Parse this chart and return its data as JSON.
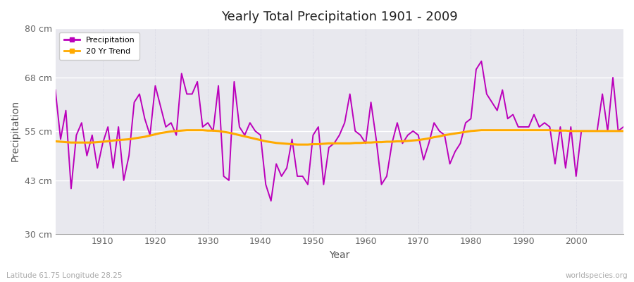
{
  "title": "Yearly Total Precipitation 1901 - 2009",
  "xlabel": "Year",
  "ylabel": "Precipitation",
  "lat_lon_label": "Latitude 61.75 Longitude 28.25",
  "watermark": "worldspecies.org",
  "ylim": [
    30,
    80
  ],
  "yticks": [
    30,
    43,
    55,
    68,
    80
  ],
  "ytick_labels": [
    "30 cm",
    "43 cm",
    "55 cm",
    "68 cm",
    "80 cm"
  ],
  "xlim": [
    1901,
    2009
  ],
  "xticks": [
    1910,
    1920,
    1930,
    1940,
    1950,
    1960,
    1970,
    1980,
    1990,
    2000
  ],
  "fig_bg_color": "#ffffff",
  "plot_bg_color": "#e8e8ee",
  "precip_color": "#bb00bb",
  "trend_color": "#ffaa00",
  "precip_linewidth": 1.4,
  "trend_linewidth": 2.2,
  "years": [
    1901,
    1902,
    1903,
    1904,
    1905,
    1906,
    1907,
    1908,
    1909,
    1910,
    1911,
    1912,
    1913,
    1914,
    1915,
    1916,
    1917,
    1918,
    1919,
    1920,
    1921,
    1922,
    1923,
    1924,
    1925,
    1926,
    1927,
    1928,
    1929,
    1930,
    1931,
    1932,
    1933,
    1934,
    1935,
    1936,
    1937,
    1938,
    1939,
    1940,
    1941,
    1942,
    1943,
    1944,
    1945,
    1946,
    1947,
    1948,
    1949,
    1950,
    1951,
    1952,
    1953,
    1954,
    1955,
    1956,
    1957,
    1958,
    1959,
    1960,
    1961,
    1962,
    1963,
    1964,
    1965,
    1966,
    1967,
    1968,
    1969,
    1970,
    1971,
    1972,
    1973,
    1974,
    1975,
    1976,
    1977,
    1978,
    1979,
    1980,
    1981,
    1982,
    1983,
    1984,
    1985,
    1986,
    1987,
    1988,
    1989,
    1990,
    1991,
    1992,
    1993,
    1994,
    1995,
    1996,
    1997,
    1998,
    1999,
    2000,
    2001,
    2002,
    2003,
    2004,
    2005,
    2006,
    2007,
    2008,
    2009
  ],
  "precip": [
    65,
    53,
    60,
    41,
    54,
    57,
    49,
    54,
    46,
    52,
    56,
    46,
    56,
    43,
    49,
    62,
    64,
    58,
    54,
    66,
    61,
    56,
    57,
    54,
    69,
    64,
    64,
    67,
    56,
    57,
    55,
    66,
    44,
    43,
    67,
    56,
    54,
    57,
    55,
    54,
    42,
    38,
    47,
    44,
    46,
    53,
    44,
    44,
    42,
    54,
    56,
    42,
    51,
    52,
    54,
    57,
    64,
    55,
    54,
    52,
    62,
    53,
    42,
    44,
    52,
    57,
    52,
    54,
    55,
    54,
    48,
    52,
    57,
    55,
    54,
    47,
    50,
    52,
    57,
    58,
    70,
    72,
    64,
    62,
    60,
    65,
    58,
    59,
    56,
    56,
    56,
    59,
    56,
    57,
    56,
    47,
    56,
    46,
    56,
    44,
    55,
    55,
    55,
    55,
    64,
    55,
    68,
    55,
    56
  ],
  "trend": [
    52.5,
    52.4,
    52.3,
    52.2,
    52.2,
    52.2,
    52.2,
    52.2,
    52.3,
    52.4,
    52.5,
    52.7,
    52.8,
    52.9,
    53.0,
    53.2,
    53.4,
    53.6,
    53.9,
    54.2,
    54.5,
    54.7,
    54.9,
    55.0,
    55.1,
    55.2,
    55.2,
    55.2,
    55.2,
    55.1,
    55.1,
    55.0,
    54.8,
    54.6,
    54.3,
    54.0,
    53.7,
    53.4,
    53.1,
    52.8,
    52.5,
    52.3,
    52.1,
    52.0,
    51.9,
    51.8,
    51.7,
    51.7,
    51.7,
    51.8,
    51.8,
    51.9,
    52.0,
    52.0,
    52.0,
    52.0,
    52.0,
    52.1,
    52.1,
    52.2,
    52.2,
    52.3,
    52.3,
    52.4,
    52.4,
    52.5,
    52.5,
    52.6,
    52.7,
    52.8,
    53.0,
    53.2,
    53.5,
    53.7,
    54.0,
    54.2,
    54.4,
    54.6,
    54.8,
    55.0,
    55.1,
    55.2,
    55.2,
    55.2,
    55.2,
    55.2,
    55.2,
    55.2,
    55.2,
    55.2,
    55.2,
    55.2,
    55.2,
    55.2,
    55.2,
    55.1,
    55.1,
    55.1,
    55.0,
    55.0,
    55.0,
    55.0,
    55.0,
    55.0,
    55.0,
    55.0,
    55.0,
    55.0,
    55.0
  ]
}
